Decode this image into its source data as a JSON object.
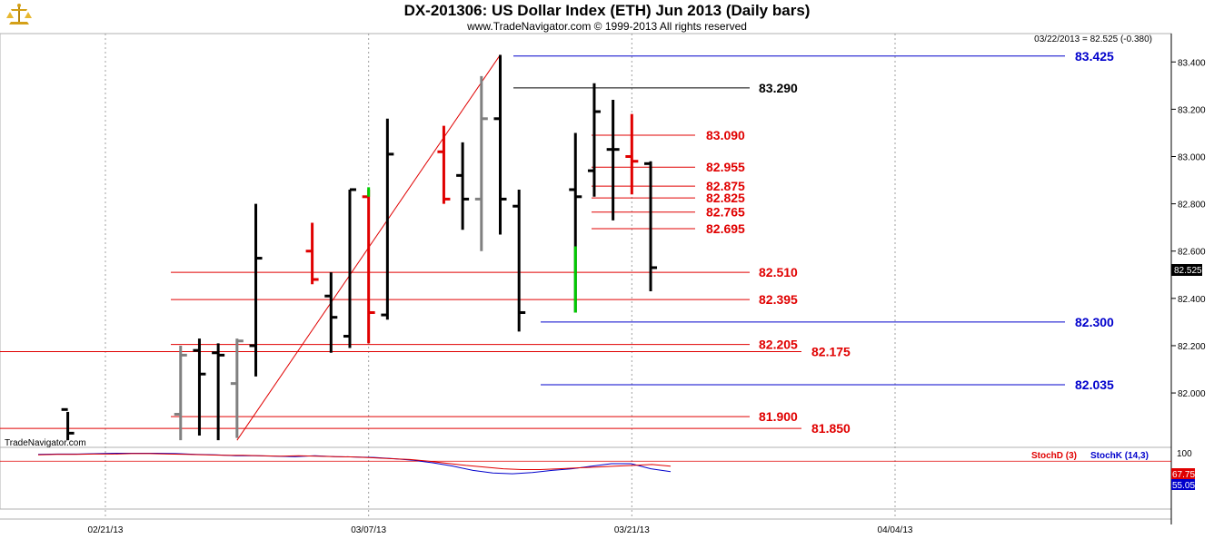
{
  "header": {
    "title": "DX-201306:  US Dollar Index (ETH) Jun 2013  (Daily bars)",
    "subtitle": "www.TradeNavigator.com © 1999-2013 All rights reserved",
    "last_quote": "03/22/2013 = 82.525 (-0.380)",
    "watermark": "TradeNavigator.com"
  },
  "icons": {
    "logo": "scales-logo-icon"
  },
  "colors": {
    "red": "#e00000",
    "blue": "#0000cc",
    "black": "#000000",
    "gray": "#808080",
    "green": "#00cc00",
    "background": "#ffffff"
  },
  "chart_data": {
    "type": "ohlc",
    "x_tick_labels": [
      "02/21/13",
      "03/07/13",
      "03/21/13",
      "04/04/13"
    ],
    "y_tick_labels": [
      "83.400",
      "83.200",
      "83.000",
      "82.800",
      "82.600",
      "82.400",
      "82.200",
      "82.000"
    ],
    "ylim": [
      81.77,
      83.52
    ],
    "current_price_label": "82.525",
    "bars": [
      {
        "date": "02/19/13",
        "open": 81.93,
        "high": 81.92,
        "low": 81.8,
        "close": 81.83,
        "color": "black"
      },
      {
        "date": "02/25/13",
        "open": 81.91,
        "high": 82.2,
        "low": 81.8,
        "close": 82.16,
        "color": "gray"
      },
      {
        "date": "02/26/13",
        "open": 82.18,
        "high": 82.23,
        "low": 81.82,
        "close": 82.08,
        "color": "black"
      },
      {
        "date": "02/27/13",
        "open": 82.17,
        "high": 82.21,
        "low": 81.8,
        "close": 82.16,
        "color": "black"
      },
      {
        "date": "02/28/13",
        "open": 82.04,
        "high": 82.23,
        "low": 81.81,
        "close": 82.22,
        "color": "gray"
      },
      {
        "date": "03/01/13",
        "open": 82.2,
        "high": 82.8,
        "low": 82.07,
        "close": 82.57,
        "color": "black"
      },
      {
        "date": "03/04/13",
        "open": 82.6,
        "high": 82.72,
        "low": 82.46,
        "close": 82.48,
        "color": "red"
      },
      {
        "date": "03/05/13",
        "open": 82.41,
        "high": 82.51,
        "low": 82.17,
        "close": 82.32,
        "color": "black"
      },
      {
        "date": "03/06/13",
        "open": 82.24,
        "high": 82.86,
        "low": 82.19,
        "close": 82.86,
        "color": "black"
      },
      {
        "date": "03/07/13",
        "open": 82.83,
        "high": 82.86,
        "low": 82.21,
        "close": 82.34,
        "color": "red"
      },
      {
        "date": "03/08/13",
        "open": 82.33,
        "high": 83.16,
        "low": 82.31,
        "close": 83.01,
        "color": "black"
      },
      {
        "date": "03/11/13",
        "open": 83.02,
        "high": 83.13,
        "low": 82.8,
        "close": 82.82,
        "color": "red"
      },
      {
        "date": "03/12/13",
        "open": 82.92,
        "high": 83.06,
        "low": 82.69,
        "close": 82.82,
        "color": "black"
      },
      {
        "date": "03/13/13",
        "open": 82.82,
        "high": 83.34,
        "low": 82.6,
        "close": 83.16,
        "color": "gray"
      },
      {
        "date": "03/14/13",
        "open": 83.16,
        "high": 83.43,
        "low": 82.67,
        "close": 82.82,
        "color": "black"
      },
      {
        "date": "03/15/13",
        "open": 82.79,
        "high": 82.86,
        "low": 82.26,
        "close": 82.34,
        "color": "black"
      },
      {
        "date": "03/18/13",
        "open": 82.86,
        "high": 83.1,
        "low": 82.34,
        "close": 82.83,
        "color": "black"
      },
      {
        "date": "03/19/13",
        "open": 82.94,
        "high": 83.31,
        "low": 82.83,
        "close": 83.19,
        "color": "black"
      },
      {
        "date": "03/20/13",
        "open": 83.03,
        "high": 83.24,
        "low": 82.73,
        "close": 83.03,
        "color": "black"
      },
      {
        "date": "03/21/13",
        "open": 83.0,
        "high": 83.18,
        "low": 82.84,
        "close": 82.98,
        "color": "red"
      },
      {
        "date": "03/22/13",
        "open": 82.97,
        "high": 82.98,
        "low": 82.43,
        "close": 82.53,
        "color": "black"
      }
    ],
    "levels": [
      {
        "value": 83.425,
        "label": "83.425",
        "color": "blue"
      },
      {
        "value": 83.29,
        "label": "83.290",
        "color": "black"
      },
      {
        "value": 83.09,
        "label": "83.090",
        "color": "red"
      },
      {
        "value": 82.955,
        "label": "82.955",
        "color": "red"
      },
      {
        "value": 82.875,
        "label": "82.875",
        "color": "red"
      },
      {
        "value": 82.825,
        "label": "82.825",
        "color": "red"
      },
      {
        "value": 82.765,
        "label": "82.765",
        "color": "red"
      },
      {
        "value": 82.695,
        "label": "82.695",
        "color": "red"
      },
      {
        "value": 82.51,
        "label": "82.510",
        "color": "red"
      },
      {
        "value": 82.395,
        "label": "82.395",
        "color": "red"
      },
      {
        "value": 82.3,
        "label": "82.300",
        "color": "blue"
      },
      {
        "value": 82.205,
        "label": "82.205",
        "color": "red"
      },
      {
        "value": 82.175,
        "label": "82.175",
        "color": "red"
      },
      {
        "value": 82.035,
        "label": "82.035",
        "color": "blue"
      },
      {
        "value": 81.9,
        "label": "81.900",
        "color": "red"
      },
      {
        "value": 81.85,
        "label": "81.850",
        "color": "red"
      }
    ],
    "trendline": {
      "from": {
        "date": "02/28/13",
        "value": 81.8
      },
      "to": {
        "date": "03/14/13",
        "value": 83.43
      },
      "color": "red"
    },
    "stochastic": {
      "stochd_label": "StochD (3)",
      "stochk_label": "StochK (14,3)",
      "scale_top_label": "100",
      "stochd_value_label": "67.75",
      "stochk_value_label": "55.05",
      "overbought": 80,
      "stochd": [
        95,
        96,
        96,
        97,
        97,
        98,
        98,
        97,
        96,
        95,
        94,
        94,
        93,
        92,
        93,
        92,
        91,
        90,
        88,
        86,
        84,
        80,
        75,
        70,
        66,
        62,
        60,
        60,
        62,
        64,
        66,
        68,
        70,
        72,
        68
      ],
      "stochk": [
        96,
        97,
        97,
        98,
        99,
        99,
        99,
        98,
        96,
        95,
        93,
        93,
        92,
        91,
        93,
        91,
        90,
        89,
        86,
        82,
        76,
        68,
        58,
        52,
        50,
        53,
        58,
        62,
        68,
        74,
        74,
        62,
        55
      ]
    }
  }
}
